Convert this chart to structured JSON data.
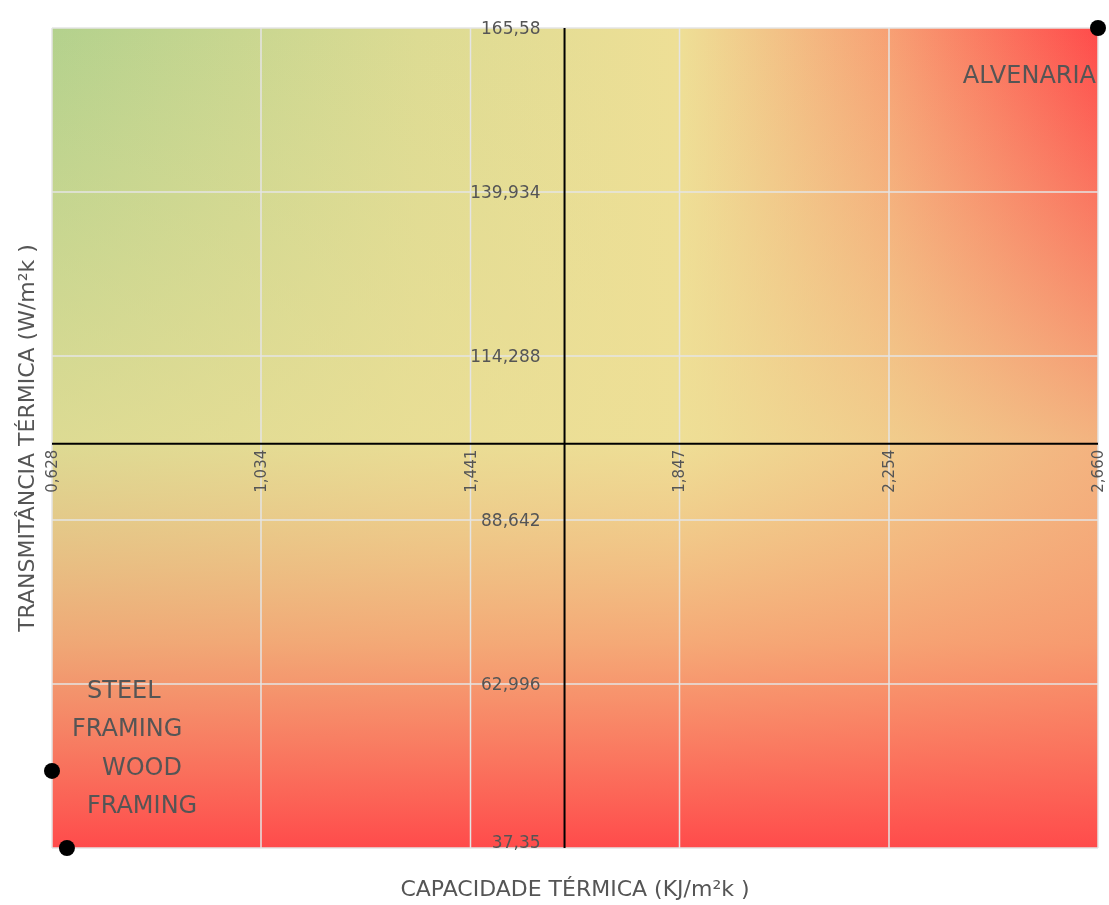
{
  "chart_data": {
    "type": "scatter",
    "xlabel": "CAPACIDADE TÉRMICA (KJ/m²k )",
    "ylabel": "TRANSMITÂNCIA TÉRMICA (W/m²k )",
    "x": [
      2.66,
      0.628,
      0.657
    ],
    "series": [
      {
        "color": "#000000",
        "values": [
          165.58,
          49.4,
          37.35
        ]
      }
    ],
    "xlim": [
      0.628,
      2.66
    ],
    "ylim": [
      37.35,
      165.58
    ],
    "xticks": [
      {
        "value": 0.628,
        "label": "0,628"
      },
      {
        "value": 1.034,
        "label": "1,034"
      },
      {
        "value": 1.441,
        "label": "1,441"
      },
      {
        "value": 1.847,
        "label": "1,847"
      },
      {
        "value": 2.254,
        "label": "2,254"
      },
      {
        "value": 2.66,
        "label": "2,660"
      }
    ],
    "yticks": [
      {
        "value": 37.35,
        "label": "37,35"
      },
      {
        "value": 62.996,
        "label": "62,996"
      },
      {
        "value": 88.642,
        "label": "88,642"
      },
      {
        "value": 114.288,
        "label": "114,288"
      },
      {
        "value": 139.934,
        "label": "139,934"
      },
      {
        "value": 165.58,
        "label": "165,58"
      }
    ],
    "annotations": [
      {
        "text": "ALVENARIA",
        "x": 2.66,
        "y": 165.58
      },
      {
        "text": "STEEL FRAMING",
        "x": 0.628,
        "y": 49.4
      },
      {
        "text": "WOOD FRAMING",
        "x": 0.657,
        "y": 37.35
      }
    ],
    "grid": true,
    "marker": "circle"
  }
}
